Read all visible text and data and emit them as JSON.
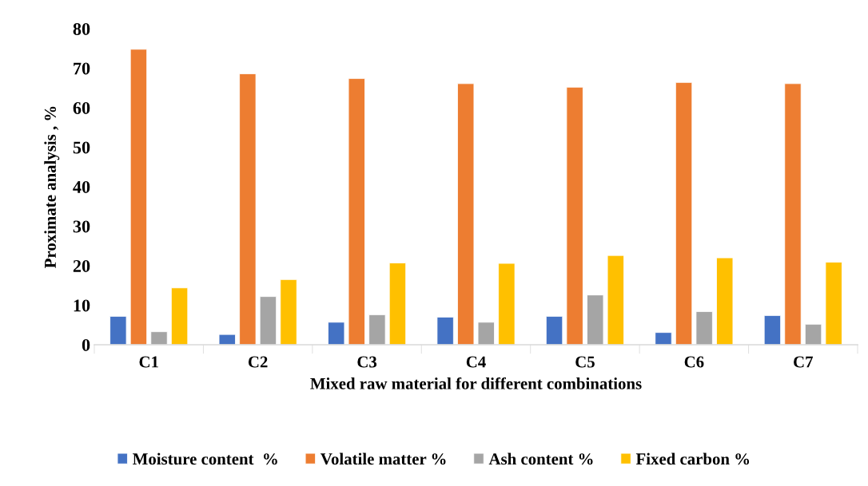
{
  "chart_data": {
    "type": "bar",
    "xlabel": "Mixed raw material for different combinations",
    "ylabel": "Proximate analysis , %",
    "categories": [
      "C1",
      "C2",
      "C3",
      "C4",
      "C5",
      "C6",
      "C7"
    ],
    "series": [
      {
        "name": "Moisture content  %",
        "color": "#4472c4",
        "values": [
          7.2,
          2.6,
          5.7,
          7.0,
          7.2,
          3.1,
          7.4
        ]
      },
      {
        "name": "Volatile matter %",
        "color": "#ed7d31",
        "values": [
          74.8,
          68.6,
          67.4,
          66.1,
          65.2,
          66.4,
          66.1
        ]
      },
      {
        "name": "Ash content %",
        "color": "#a5a5a5",
        "values": [
          3.3,
          12.2,
          7.6,
          5.7,
          12.6,
          8.4,
          5.2
        ]
      },
      {
        "name": "Fixed carbon %",
        "color": "#ffc000",
        "values": [
          14.4,
          16.5,
          20.7,
          20.6,
          22.6,
          22.0,
          20.9
        ]
      }
    ],
    "ylim": [
      0,
      80
    ],
    "yticks": [
      0,
      10,
      20,
      30,
      40,
      50,
      60,
      70,
      80
    ],
    "grid": false,
    "legend": "bottom"
  }
}
